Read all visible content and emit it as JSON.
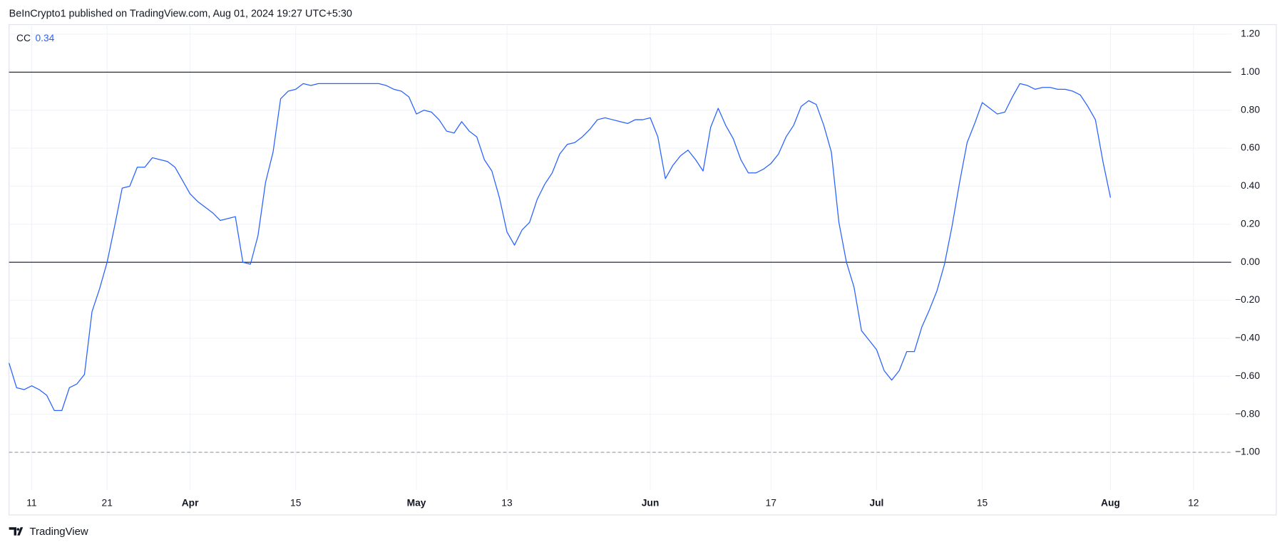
{
  "header": "BeInCrypto1 published on TradingView.com, Aug 01, 2024 19:27 UTC+5:30",
  "footer": "TradingView",
  "chart_data": {
    "type": "line",
    "legend_label": "CC",
    "legend_value": "0.34",
    "grid": true,
    "xlim": [
      "2024-03-08",
      "2024-08-17"
    ],
    "ylim": [
      -1.2,
      1.25
    ],
    "xticks": [
      {
        "value": "2024-03-11",
        "label": "11"
      },
      {
        "value": "2024-03-21",
        "label": "21"
      },
      {
        "value": "2024-04-01",
        "label": "Apr"
      },
      {
        "value": "2024-04-15",
        "label": "15"
      },
      {
        "value": "2024-05-01",
        "label": "May"
      },
      {
        "value": "2024-05-13",
        "label": "13"
      },
      {
        "value": "2024-06-01",
        "label": "Jun"
      },
      {
        "value": "2024-06-17",
        "label": "17"
      },
      {
        "value": "2024-07-01",
        "label": "Jul"
      },
      {
        "value": "2024-07-15",
        "label": "15"
      },
      {
        "value": "2024-08-01",
        "label": "Aug"
      },
      {
        "value": "2024-08-12",
        "label": "12"
      }
    ],
    "yticks": [
      {
        "value": 1.2,
        "label": "1.20"
      },
      {
        "value": 1.0,
        "label": "1.00"
      },
      {
        "value": 0.8,
        "label": "0.80"
      },
      {
        "value": 0.6,
        "label": "0.60"
      },
      {
        "value": 0.4,
        "label": "0.40"
      },
      {
        "value": 0.2,
        "label": "0.20"
      },
      {
        "value": 0,
        "label": "0.00"
      },
      {
        "value": -0.2,
        "label": "−0.20"
      },
      {
        "value": -0.4,
        "label": "−0.40"
      },
      {
        "value": -0.6,
        "label": "−0.60"
      },
      {
        "value": -0.8,
        "label": "−0.80"
      },
      {
        "value": -1.0,
        "label": "−1.00"
      }
    ],
    "hlines": [
      {
        "value": 1,
        "style": "solid",
        "color": "#131722"
      },
      {
        "value": 0,
        "style": "solid",
        "color": "#131722"
      },
      {
        "value": -1,
        "style": "dashed",
        "color": "#9598a1"
      }
    ],
    "x": [
      "2024-03-08",
      "2024-03-09",
      "2024-03-10",
      "2024-03-11",
      "2024-03-12",
      "2024-03-13",
      "2024-03-14",
      "2024-03-15",
      "2024-03-16",
      "2024-03-17",
      "2024-03-18",
      "2024-03-19",
      "2024-03-20",
      "2024-03-21",
      "2024-03-22",
      "2024-03-23",
      "2024-03-24",
      "2024-03-25",
      "2024-03-26",
      "2024-03-27",
      "2024-03-28",
      "2024-03-29",
      "2024-03-30",
      "2024-03-31",
      "2024-04-01",
      "2024-04-02",
      "2024-04-03",
      "2024-04-04",
      "2024-04-05",
      "2024-04-06",
      "2024-04-07",
      "2024-04-08",
      "2024-04-09",
      "2024-04-10",
      "2024-04-11",
      "2024-04-12",
      "2024-04-13",
      "2024-04-14",
      "2024-04-15",
      "2024-04-16",
      "2024-04-17",
      "2024-04-18",
      "2024-04-19",
      "2024-04-20",
      "2024-04-21",
      "2024-04-22",
      "2024-04-23",
      "2024-04-24",
      "2024-04-25",
      "2024-04-26",
      "2024-04-27",
      "2024-04-28",
      "2024-04-29",
      "2024-04-30",
      "2024-05-01",
      "2024-05-02",
      "2024-05-03",
      "2024-05-04",
      "2024-05-05",
      "2024-05-06",
      "2024-05-07",
      "2024-05-08",
      "2024-05-09",
      "2024-05-10",
      "2024-05-11",
      "2024-05-12",
      "2024-05-13",
      "2024-05-14",
      "2024-05-15",
      "2024-05-16",
      "2024-05-17",
      "2024-05-18",
      "2024-05-19",
      "2024-05-20",
      "2024-05-21",
      "2024-05-22",
      "2024-05-23",
      "2024-05-24",
      "2024-05-25",
      "2024-05-26",
      "2024-05-27",
      "2024-05-28",
      "2024-05-29",
      "2024-05-30",
      "2024-05-31",
      "2024-06-01",
      "2024-06-02",
      "2024-06-03",
      "2024-06-04",
      "2024-06-05",
      "2024-06-06",
      "2024-06-07",
      "2024-06-08",
      "2024-06-09",
      "2024-06-10",
      "2024-06-11",
      "2024-06-12",
      "2024-06-13",
      "2024-06-14",
      "2024-06-15",
      "2024-06-16",
      "2024-06-17",
      "2024-06-18",
      "2024-06-19",
      "2024-06-20",
      "2024-06-21",
      "2024-06-22",
      "2024-06-23",
      "2024-06-24",
      "2024-06-25",
      "2024-06-26",
      "2024-06-27",
      "2024-06-28",
      "2024-06-29",
      "2024-06-30",
      "2024-07-01",
      "2024-07-02",
      "2024-07-03",
      "2024-07-04",
      "2024-07-05",
      "2024-07-06",
      "2024-07-07",
      "2024-07-08",
      "2024-07-09",
      "2024-07-10",
      "2024-07-11",
      "2024-07-12",
      "2024-07-13",
      "2024-07-14",
      "2024-07-15",
      "2024-07-16",
      "2024-07-17",
      "2024-07-18",
      "2024-07-19",
      "2024-07-20",
      "2024-07-21",
      "2024-07-22",
      "2024-07-23",
      "2024-07-24",
      "2024-07-25",
      "2024-07-26",
      "2024-07-27",
      "2024-07-28",
      "2024-07-29",
      "2024-07-30",
      "2024-07-31",
      "2024-08-01"
    ],
    "series": [
      {
        "name": "CC",
        "color": "#2962ff",
        "values": [
          -0.53,
          -0.66,
          -0.67,
          -0.65,
          -0.67,
          -0.7,
          -0.78,
          -0.78,
          -0.66,
          -0.64,
          -0.59,
          -0.26,
          -0.14,
          0.0,
          0.19,
          0.39,
          0.4,
          0.5,
          0.5,
          0.55,
          0.54,
          0.53,
          0.5,
          0.43,
          0.36,
          0.32,
          0.29,
          0.26,
          0.22,
          0.23,
          0.24,
          0.0,
          -0.01,
          0.14,
          0.42,
          0.58,
          0.86,
          0.9,
          0.91,
          0.94,
          0.93,
          0.94,
          0.94,
          0.94,
          0.94,
          0.94,
          0.94,
          0.94,
          0.94,
          0.94,
          0.93,
          0.91,
          0.9,
          0.87,
          0.78,
          0.8,
          0.79,
          0.75,
          0.69,
          0.68,
          0.74,
          0.69,
          0.66,
          0.54,
          0.48,
          0.34,
          0.16,
          0.09,
          0.17,
          0.21,
          0.33,
          0.41,
          0.47,
          0.57,
          0.62,
          0.63,
          0.66,
          0.7,
          0.75,
          0.76,
          0.75,
          0.74,
          0.73,
          0.75,
          0.75,
          0.76,
          0.66,
          0.44,
          0.51,
          0.56,
          0.59,
          0.54,
          0.48,
          0.71,
          0.81,
          0.72,
          0.65,
          0.54,
          0.47,
          0.47,
          0.49,
          0.52,
          0.57,
          0.66,
          0.72,
          0.82,
          0.85,
          0.83,
          0.72,
          0.58,
          0.21,
          0.0,
          -0.13,
          -0.36,
          -0.41,
          -0.46,
          -0.57,
          -0.62,
          -0.57,
          -0.47,
          -0.47,
          -0.34,
          -0.25,
          -0.15,
          -0.01,
          0.19,
          0.42,
          0.63,
          0.73,
          0.84,
          0.81,
          0.78,
          0.79,
          0.87,
          0.94,
          0.93,
          0.91,
          0.92,
          0.92,
          0.91,
          0.91,
          0.9,
          0.88,
          0.82,
          0.75,
          0.53,
          0.34
        ]
      }
    ]
  }
}
